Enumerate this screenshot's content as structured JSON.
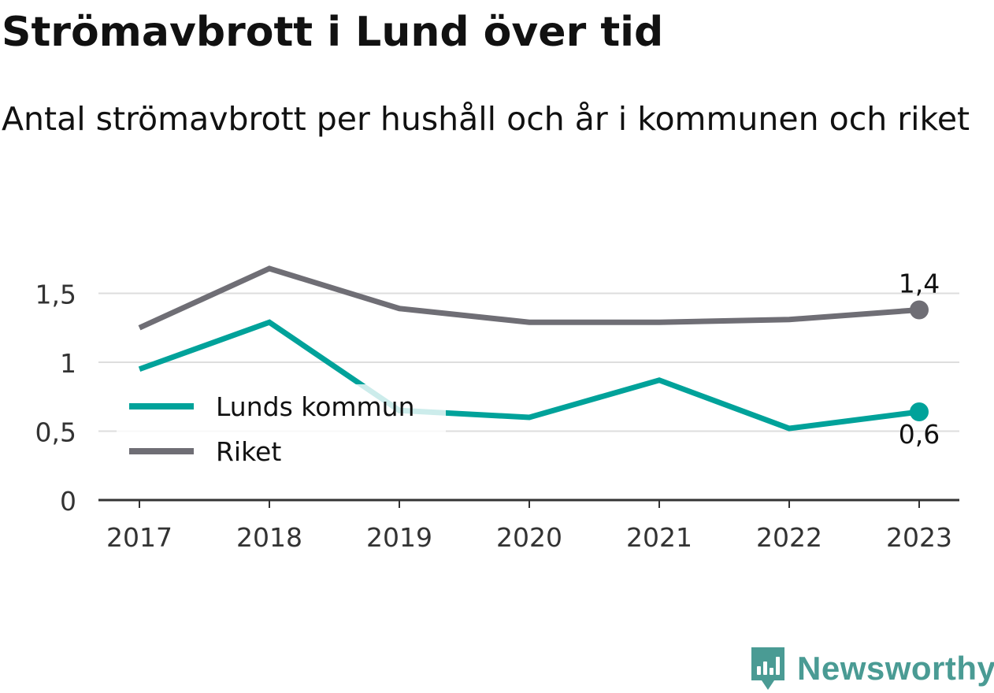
{
  "header": {
    "title": "Strömavbrott i Lund över tid",
    "subtitle": "Antal strömavbrott per hushåll och år i kommunen och riket"
  },
  "chart_data": {
    "type": "line",
    "x": [
      "2017",
      "2018",
      "2019",
      "2020",
      "2021",
      "2022",
      "2023"
    ],
    "series": [
      {
        "name": "Lunds kommun",
        "color": "#00a29a",
        "values": [
          0.95,
          1.29,
          0.65,
          0.6,
          0.87,
          0.52,
          0.64
        ],
        "end_label": "0,6"
      },
      {
        "name": "Riket",
        "color": "#6f6e75",
        "values": [
          1.25,
          1.68,
          1.39,
          1.29,
          1.29,
          1.31,
          1.38
        ],
        "end_label": "1,4"
      }
    ],
    "y_ticks": [
      {
        "value": 0,
        "label": "0"
      },
      {
        "value": 0.5,
        "label": "0,5"
      },
      {
        "value": 1,
        "label": "1"
      },
      {
        "value": 1.5,
        "label": "1,5"
      }
    ],
    "ylim": [
      0,
      1.7
    ],
    "grid": true,
    "legend_position": "lower-left",
    "xlabel": "",
    "ylabel": ""
  },
  "footer": {
    "brand": "Newsworthy",
    "brand_color": "#4a9b94"
  }
}
